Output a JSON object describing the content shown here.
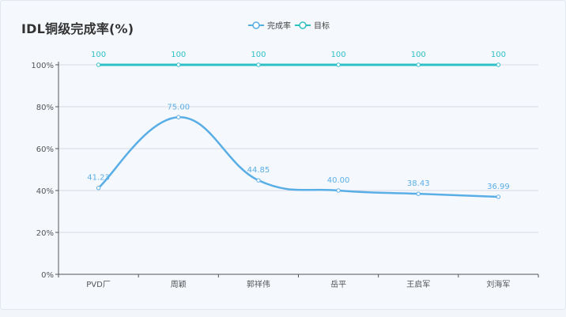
{
  "chart_data": {
    "type": "line",
    "title": "IDL铜级完成率(%)",
    "categories": [
      "PVD厂",
      "周颖",
      "郭祥伟",
      "岳平",
      "王启军",
      "刘海军"
    ],
    "ylim": [
      0,
      100
    ],
    "yticks": [
      "0%",
      "20%",
      "40%",
      "60%",
      "80%",
      "100%"
    ],
    "grid": true,
    "legend_position": "top-center",
    "series": [
      {
        "name": "完成率",
        "values": [
          41.23,
          75.0,
          44.85,
          40.0,
          38.43,
          36.99
        ],
        "labels": [
          "41.23",
          "75.00",
          "44.85",
          "40.00",
          "38.43",
          "36.99"
        ],
        "color": "#5aaee6",
        "smooth": true
      },
      {
        "name": "目标",
        "values": [
          100,
          100,
          100,
          100,
          100,
          100
        ],
        "labels": [
          "100",
          "100",
          "100",
          "100",
          "100",
          "100"
        ],
        "color": "#2fc0c6",
        "smooth": false
      }
    ]
  }
}
